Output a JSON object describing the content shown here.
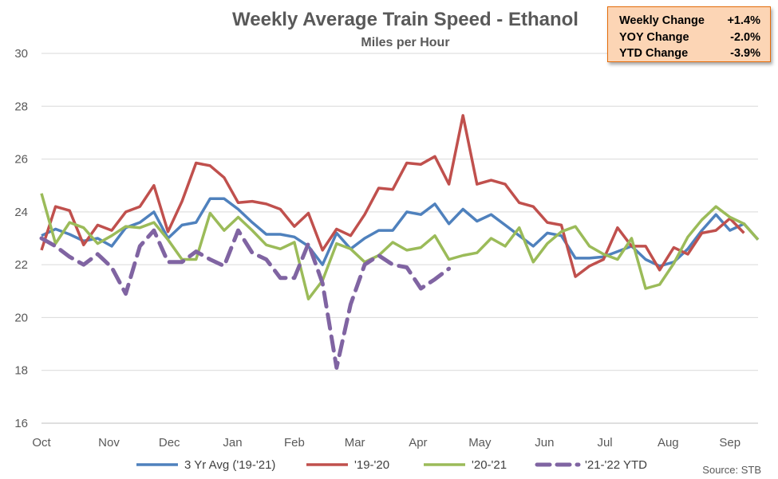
{
  "chart_data": {
    "type": "line",
    "title": "Weekly Average Train Speed - Ethanol",
    "subtitle": "Miles per Hour",
    "ylim": [
      16,
      30
    ],
    "yticks": [
      16,
      18,
      20,
      22,
      24,
      26,
      28,
      30
    ],
    "xlim": [
      1,
      52
    ],
    "months": [
      {
        "label": "Oct",
        "week": 1
      },
      {
        "label": "Nov",
        "week": 5.8
      },
      {
        "label": "Dec",
        "week": 10.1
      },
      {
        "label": "Jan",
        "week": 14.6
      },
      {
        "label": "Feb",
        "week": 19
      },
      {
        "label": "Mar",
        "week": 23.3
      },
      {
        "label": "Apr",
        "week": 27.8
      },
      {
        "label": "May",
        "week": 32.2
      },
      {
        "label": "Jun",
        "week": 36.8
      },
      {
        "label": "Jul",
        "week": 41.1
      },
      {
        "label": "Aug",
        "week": 45.6
      },
      {
        "label": "Sep",
        "week": 50
      }
    ],
    "series": [
      {
        "name": "3 Yr Avg ('19-'21)",
        "color": "#4f81bd",
        "dash": false,
        "values": [
          23.1,
          23.35,
          23.15,
          22.9,
          23.0,
          22.7,
          23.4,
          23.6,
          24.0,
          23.0,
          23.5,
          23.6,
          24.5,
          24.5,
          24.1,
          23.6,
          23.15,
          23.15,
          23.05,
          22.7,
          22.0,
          23.2,
          22.6,
          23.0,
          23.3,
          23.3,
          24.0,
          23.9,
          24.3,
          23.55,
          24.1,
          23.65,
          23.9,
          23.5,
          23.1,
          22.7,
          23.2,
          23.1,
          22.25,
          22.25,
          22.3,
          22.5,
          22.7,
          22.2,
          21.95,
          22.1,
          22.6,
          23.3,
          23.9,
          23.3,
          23.55,
          22.95
        ]
      },
      {
        "name": "'19-'20",
        "color": "#c0504d",
        "dash": false,
        "values": [
          22.55,
          24.2,
          24.05,
          22.75,
          23.5,
          23.3,
          24.0,
          24.2,
          25.0,
          23.25,
          24.4,
          25.85,
          25.75,
          25.3,
          24.35,
          24.4,
          24.3,
          24.1,
          23.45,
          23.95,
          22.55,
          23.35,
          23.1,
          23.9,
          24.9,
          24.85,
          25.85,
          25.8,
          26.1,
          25.05,
          27.65,
          25.05,
          25.2,
          25.05,
          24.35,
          24.2,
          23.6,
          23.5,
          21.55,
          21.95,
          22.2,
          23.4,
          22.7,
          22.7,
          21.8,
          22.65,
          22.4,
          23.2,
          23.3,
          23.75,
          23.2
        ]
      },
      {
        "name": "'20-'21",
        "color": "#9bbb59",
        "dash": false,
        "values": [
          24.7,
          22.8,
          23.6,
          23.4,
          22.8,
          23.1,
          23.45,
          23.4,
          23.6,
          22.95,
          22.2,
          22.2,
          23.95,
          23.3,
          23.8,
          23.3,
          22.75,
          22.6,
          22.85,
          20.7,
          21.4,
          22.8,
          22.6,
          22.1,
          22.35,
          22.85,
          22.55,
          22.65,
          23.1,
          22.2,
          22.35,
          22.45,
          23.0,
          22.7,
          23.4,
          22.1,
          22.8,
          23.25,
          23.45,
          22.7,
          22.4,
          22.2,
          23.0,
          21.1,
          21.25,
          22.05,
          23.05,
          23.7,
          24.2,
          23.8,
          23.55,
          22.95
        ]
      },
      {
        "name": "'21-'22 YTD",
        "color": "#8064a2",
        "dash": true,
        "values": [
          23.0,
          22.7,
          22.3,
          22.0,
          22.4,
          21.9,
          20.9,
          22.7,
          23.3,
          22.1,
          22.1,
          22.5,
          22.2,
          21.95,
          23.3,
          22.45,
          22.2,
          21.5,
          21.5,
          22.8,
          21.3,
          18.1,
          20.5,
          22.0,
          22.35,
          22.0,
          21.9,
          21.1,
          21.45,
          21.85
        ]
      }
    ]
  },
  "stats_box": {
    "rows": [
      {
        "label": "Weekly Change",
        "value": "+1.4%"
      },
      {
        "label": "YOY Change",
        "value": "-2.0%"
      },
      {
        "label": "YTD Change",
        "value": "-3.9%"
      }
    ]
  },
  "source": "Source:  STB"
}
